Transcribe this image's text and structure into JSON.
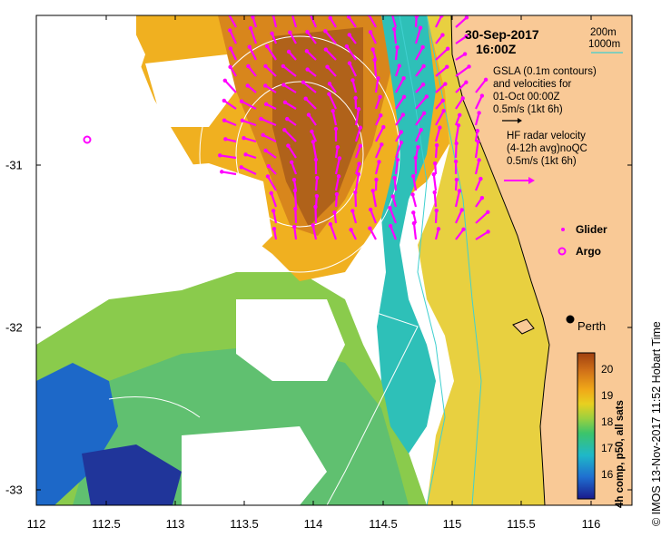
{
  "title": {
    "date": "30-Sep-2017",
    "time": "16:00Z"
  },
  "depth_legend": {
    "d200": "200m",
    "d1000": "1000m"
  },
  "gsla_legend": {
    "line1": "GSLA (0.1m contours)",
    "line2": "and velocities for",
    "line3": "01-Oct 00:00Z",
    "scale": "0.5m/s (1kt 6h)"
  },
  "hf_legend": {
    "line1": "HF radar velocity",
    "line2": "(4-12h avg)noQC",
    "scale": "0.5m/s (1kt 6h)"
  },
  "symbols": {
    "glider": "Glider",
    "argo": "Argo"
  },
  "city": "Perth",
  "x_ticks": [
    "112",
    "112.5",
    "113",
    "113.5",
    "114",
    "114.5",
    "115",
    "115.5",
    "116"
  ],
  "y_ticks": [
    "-31",
    "-32",
    "-33"
  ],
  "colorbar": {
    "label": "4h comp, p50, all sats",
    "ticks": [
      "20",
      "19",
      "18",
      "17",
      "16"
    ]
  },
  "credit": "© IMOS 13-Nov-2017 11:52 Hobart Time",
  "colors": {
    "land": "#f9c996",
    "arrows": "#ff00ff",
    "contour": "#ffffff",
    "isobath": "#40d0d0"
  }
}
